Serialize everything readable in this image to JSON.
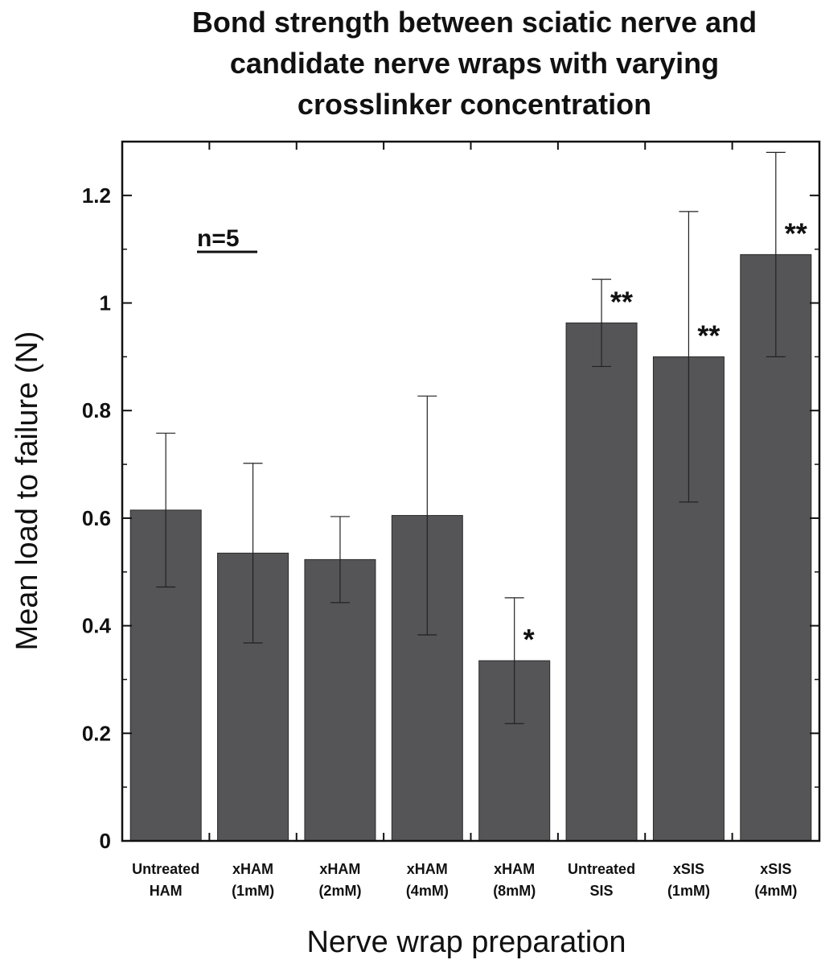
{
  "chart_data": {
    "type": "bar",
    "title_lines": [
      "Bond strength between sciatic nerve and",
      "candidate nerve wraps with varying",
      "crosslinker concentration"
    ],
    "xlabel": "Nerve wrap preparation",
    "ylabel": "Mean load to failure (N)",
    "ylim": [
      0,
      1.3
    ],
    "yticks": [
      0,
      0.2,
      0.4,
      0.6,
      0.8,
      1,
      1.2
    ],
    "ytick_labels": [
      "0",
      "0.2",
      "0.4",
      "0.6",
      "0.8",
      "1",
      "1.2"
    ],
    "categories": [
      [
        "Untreated",
        "HAM"
      ],
      [
        "xHAM",
        "(1mM)"
      ],
      [
        "xHAM",
        "(2mM)"
      ],
      [
        "xHAM",
        "(4mM)"
      ],
      [
        "xHAM",
        "(8mM)"
      ],
      [
        "Untreated",
        "SIS"
      ],
      [
        "xSIS",
        "(1mM)"
      ],
      [
        "xSIS",
        "(4mM)"
      ]
    ],
    "values": [
      0.615,
      0.535,
      0.523,
      0.605,
      0.335,
      0.963,
      0.9,
      1.09
    ],
    "error": [
      0.143,
      0.167,
      0.08,
      0.222,
      0.117,
      0.081,
      0.27,
      0.19
    ],
    "significance": [
      "",
      "",
      "",
      "",
      "*",
      "**",
      "**",
      "**"
    ],
    "annotation": "n=5",
    "bar_color": "#555557",
    "grid": false,
    "legend": "none"
  }
}
